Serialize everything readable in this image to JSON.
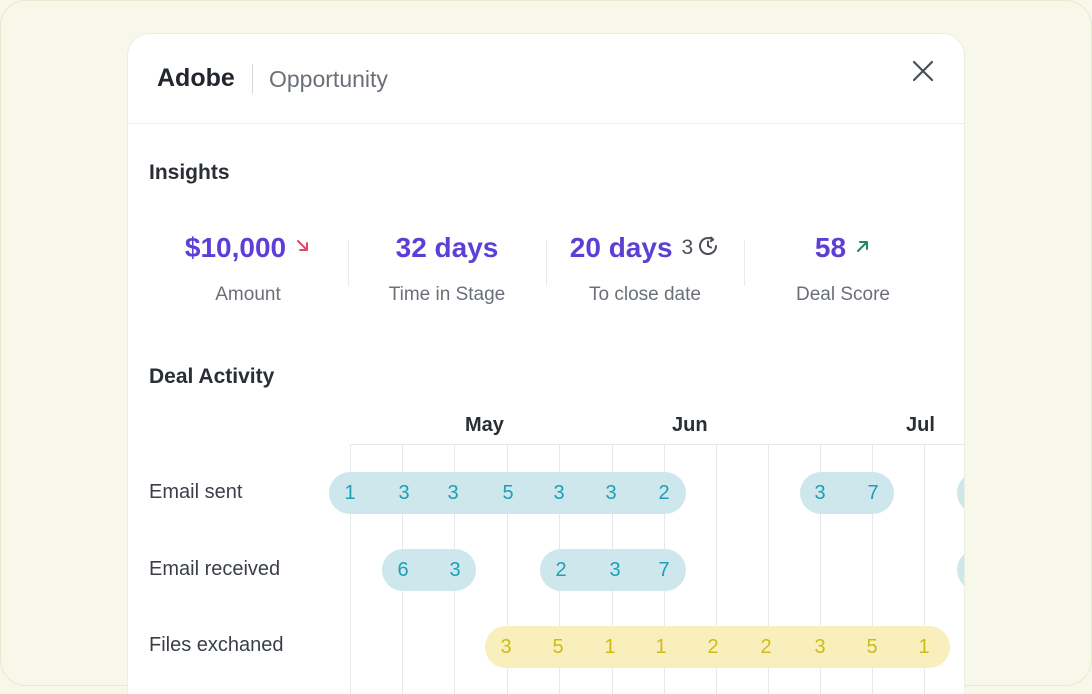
{
  "header": {
    "title": "Adobe",
    "subtitle": "Opportunity"
  },
  "icons": {
    "close": "close-icon",
    "trend_down": "arrow-down-right-icon",
    "trend_up": "arrow-up-right-icon",
    "clock": "clock-rotate-icon"
  },
  "colors": {
    "accent": "#5b3fd6",
    "trend_down": "#e04a6a",
    "trend_up": "#1f8a5b",
    "email_pill": "#cde7ec",
    "email_text": "#1d9fb5",
    "files_pill": "#f8efbc",
    "files_text": "#cdbb18"
  },
  "insights": {
    "title": "Insights",
    "metrics": [
      {
        "value": "$10,000",
        "label": "Amount",
        "trend": "down"
      },
      {
        "value": "32 days",
        "label": "Time in Stage"
      },
      {
        "value": "20 days",
        "label": "To close date",
        "count": "3"
      },
      {
        "value": "58",
        "label": "Deal Score",
        "trend": "up"
      }
    ]
  },
  "activity": {
    "title": "Deal Activity",
    "months": [
      "May",
      "Jun",
      "Jul"
    ],
    "rows": [
      {
        "label": "Email sent",
        "segments": [
          {
            "values": [
              "1",
              "3",
              "3",
              "5",
              "3",
              "3",
              "2"
            ]
          },
          {
            "values": [
              "3",
              "7"
            ]
          },
          {
            "values": []
          }
        ]
      },
      {
        "label": "Email received",
        "segments": [
          {
            "values": [
              "6",
              "3"
            ]
          },
          {
            "values": [
              "2",
              "3",
              "7"
            ]
          },
          {
            "values": []
          }
        ]
      },
      {
        "label": "Files exchaned",
        "segments": [
          {
            "values": [
              "3",
              "5",
              "1",
              "1",
              "2",
              "2",
              "3",
              "5",
              "1"
            ]
          }
        ]
      }
    ]
  }
}
